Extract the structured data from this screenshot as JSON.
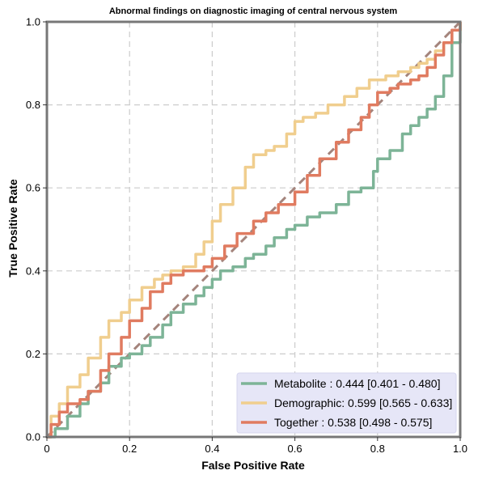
{
  "chart_data": {
    "type": "line",
    "title": "Abnormal findings on diagnostic imaging of central nervous system",
    "xlabel": "False Positive Rate",
    "ylabel": "True Positive Rate",
    "xlim": [
      0,
      1
    ],
    "ylim": [
      0,
      1
    ],
    "x_ticks": [
      "0",
      "0.2",
      "0.4",
      "0.6",
      "0.8",
      "1.0"
    ],
    "y_ticks": [
      "0.0",
      "0.2",
      "0.4",
      "0.6",
      "0.8",
      "1.0"
    ],
    "grid": true,
    "legend_position": "lower-right",
    "diagonal_reference": {
      "x": [
        0,
        1
      ],
      "y": [
        0,
        1
      ],
      "color": "#a4847c"
    },
    "series": [
      {
        "name": "Metabolite",
        "legend_label": "Metabolite     : 0.444 [0.401 - 0.480]",
        "color": "#7db497",
        "x": [
          0,
          0.02,
          0.05,
          0.08,
          0.1,
          0.13,
          0.15,
          0.18,
          0.2,
          0.23,
          0.25,
          0.28,
          0.3,
          0.33,
          0.36,
          0.38,
          0.4,
          0.42,
          0.45,
          0.48,
          0.5,
          0.53,
          0.55,
          0.58,
          0.6,
          0.63,
          0.66,
          0.7,
          0.73,
          0.76,
          0.79,
          0.8,
          0.83,
          0.86,
          0.88,
          0.9,
          0.92,
          0.94,
          0.96,
          0.98,
          1.0
        ],
        "y": [
          0,
          0.02,
          0.05,
          0.08,
          0.11,
          0.13,
          0.17,
          0.19,
          0.2,
          0.22,
          0.24,
          0.27,
          0.3,
          0.32,
          0.34,
          0.36,
          0.38,
          0.4,
          0.41,
          0.43,
          0.44,
          0.46,
          0.48,
          0.5,
          0.51,
          0.53,
          0.54,
          0.56,
          0.59,
          0.6,
          0.64,
          0.67,
          0.69,
          0.73,
          0.75,
          0.77,
          0.79,
          0.82,
          0.87,
          0.95,
          1.0
        ]
      },
      {
        "name": "Demographic",
        "legend_label": "Demographic: 0.599 [0.565 - 0.633]",
        "color": "#f0ce8e",
        "x": [
          0,
          0.01,
          0.03,
          0.05,
          0.08,
          0.1,
          0.13,
          0.15,
          0.18,
          0.2,
          0.23,
          0.26,
          0.28,
          0.3,
          0.33,
          0.36,
          0.38,
          0.4,
          0.42,
          0.45,
          0.48,
          0.5,
          0.53,
          0.55,
          0.58,
          0.6,
          0.62,
          0.65,
          0.68,
          0.72,
          0.75,
          0.78,
          0.82,
          0.85,
          0.88,
          0.9,
          0.92,
          0.94,
          0.96,
          0.98,
          1.0
        ],
        "y": [
          0,
          0.05,
          0.08,
          0.12,
          0.15,
          0.19,
          0.24,
          0.28,
          0.3,
          0.33,
          0.36,
          0.38,
          0.39,
          0.4,
          0.41,
          0.44,
          0.47,
          0.52,
          0.56,
          0.6,
          0.65,
          0.68,
          0.69,
          0.7,
          0.73,
          0.76,
          0.77,
          0.78,
          0.8,
          0.82,
          0.84,
          0.86,
          0.87,
          0.88,
          0.89,
          0.9,
          0.91,
          0.93,
          0.95,
          0.98,
          1.0
        ]
      },
      {
        "name": "Together",
        "legend_label": "Together       : 0.538 [0.498 - 0.575]",
        "color": "#e07b60",
        "x": [
          0,
          0.01,
          0.03,
          0.05,
          0.08,
          0.1,
          0.13,
          0.15,
          0.18,
          0.2,
          0.23,
          0.25,
          0.28,
          0.3,
          0.33,
          0.36,
          0.38,
          0.4,
          0.43,
          0.46,
          0.5,
          0.53,
          0.56,
          0.6,
          0.63,
          0.66,
          0.7,
          0.73,
          0.76,
          0.78,
          0.8,
          0.83,
          0.85,
          0.88,
          0.9,
          0.92,
          0.94,
          0.96,
          0.98,
          1.0
        ],
        "y": [
          0,
          0.03,
          0.06,
          0.08,
          0.09,
          0.11,
          0.16,
          0.2,
          0.24,
          0.28,
          0.31,
          0.35,
          0.37,
          0.39,
          0.4,
          0.4,
          0.41,
          0.43,
          0.46,
          0.49,
          0.52,
          0.54,
          0.56,
          0.59,
          0.63,
          0.67,
          0.71,
          0.74,
          0.77,
          0.8,
          0.83,
          0.84,
          0.85,
          0.86,
          0.87,
          0.89,
          0.92,
          0.95,
          0.98,
          1.0
        ]
      }
    ]
  }
}
